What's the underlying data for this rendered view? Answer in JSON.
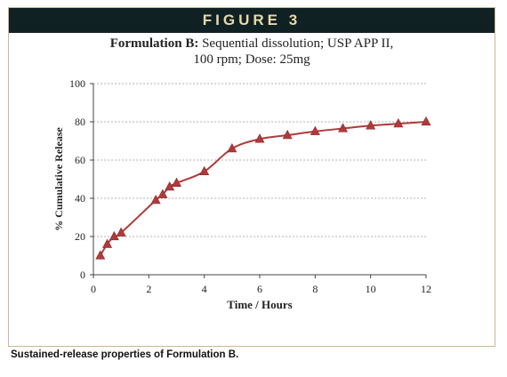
{
  "header": {
    "title": "FIGURE 3"
  },
  "caption": "Sustained-release properties of Formulation B.",
  "chart_data": {
    "type": "line",
    "title_bold": "Formulation B:",
    "title_rest": " Sequential dissolution; USP APP II,",
    "subtitle": "100 rpm; Dose: 25mg",
    "xlabel": "Time / Hours",
    "ylabel": "% Cumulative Release",
    "xlim": [
      0,
      12
    ],
    "ylim": [
      0,
      100
    ],
    "xticks": [
      0,
      2,
      4,
      6,
      8,
      10,
      12
    ],
    "yticks": [
      0,
      20,
      40,
      60,
      80,
      100
    ],
    "grid": "horizontal dashed",
    "marker": "triangle",
    "color": "#b03a3a",
    "series": [
      {
        "x": [
          0.25,
          0.5,
          0.75,
          1,
          2.25,
          2.5,
          2.75,
          3,
          4,
          5,
          6,
          7,
          8,
          9,
          10,
          11,
          12
        ],
        "y": [
          10,
          16,
          20,
          22,
          39,
          42,
          46,
          48,
          54,
          66,
          71,
          73,
          75,
          76.5,
          78,
          79,
          80
        ]
      }
    ]
  }
}
